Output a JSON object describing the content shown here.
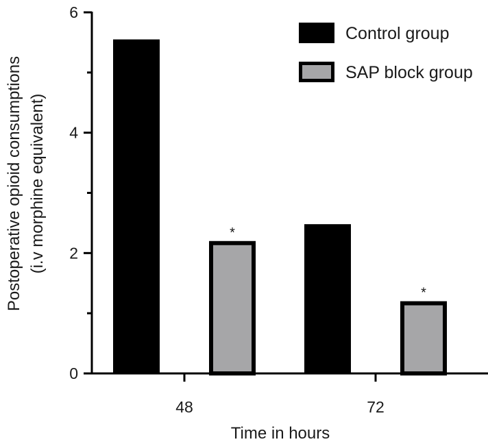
{
  "chart_data": {
    "type": "bar",
    "title": "",
    "xlabel": "Time in hours",
    "ylabel_lines": [
      "Postoperative opioid consumptions",
      "(i.v morphine equivalent)"
    ],
    "categories": [
      "48",
      "72"
    ],
    "series": [
      {
        "name": "Control group",
        "values": [
          5.55,
          2.48
        ],
        "color": "#000000"
      },
      {
        "name": "SAP block group",
        "values": [
          2.2,
          1.2
        ],
        "color": "#a6a6a8",
        "edge_color": "#000000"
      }
    ],
    "significance_labels": [
      {
        "category": "48",
        "series": "SAP block group",
        "text": "*"
      },
      {
        "category": "72",
        "series": "SAP block group",
        "text": "*"
      }
    ],
    "ylim": [
      0,
      6
    ],
    "yticks": [
      "0",
      "2",
      "4",
      "6"
    ],
    "grid": false,
    "legend_position": "top-right"
  }
}
